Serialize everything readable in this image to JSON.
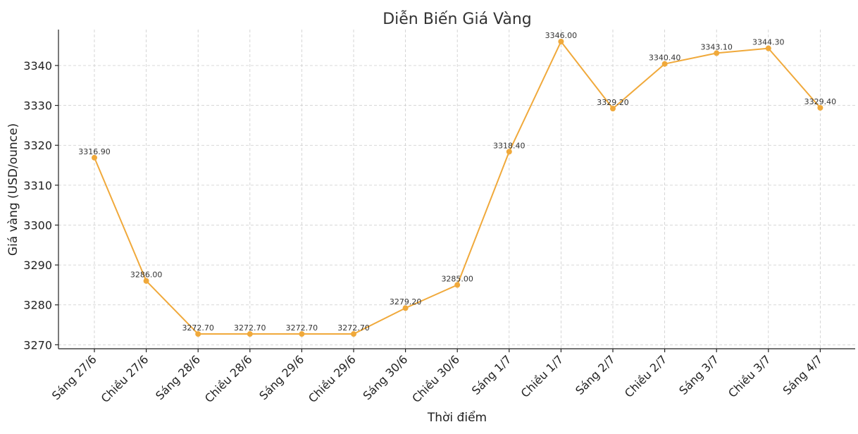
{
  "chart_data": {
    "type": "line",
    "title": "Diễn Biến Giá Vàng",
    "xlabel": "Thời điểm",
    "ylabel": "Giá vàng (USD/ounce)",
    "categories": [
      "Sáng 27/6",
      "Chiều 27/6",
      "Sáng 28/6",
      "Chiều 28/6",
      "Sáng 29/6",
      "Chiều 29/6",
      "Sáng 30/6",
      "Chiều 30/6",
      "Sáng 1/7",
      "Chiều 1/7",
      "Sáng 2/7",
      "Chiều 2/7",
      "Sáng 3/7",
      "Chiều 3/7",
      "Sáng 4/7"
    ],
    "series": [
      {
        "values": [
          3316.9,
          3286.0,
          3272.7,
          3272.7,
          3272.7,
          3272.7,
          3279.2,
          3285.0,
          3318.4,
          3346.0,
          3329.2,
          3340.4,
          3343.1,
          3344.3,
          3329.4
        ],
        "labels": [
          "3316.90",
          "3286.00",
          "3272.70",
          "3272.70",
          "3272.70",
          "3272.70",
          "3279.20",
          "3285.00",
          "3318.40",
          "3346.00",
          "3329.20",
          "3340.40",
          "3343.10",
          "3344.30",
          "3329.40"
        ]
      }
    ],
    "yticks": [
      "3270",
      "3280",
      "3290",
      "3300",
      "3310",
      "3320",
      "3330",
      "3340"
    ],
    "ylim": [
      3269,
      3349
    ],
    "grid": true,
    "colors": {
      "line": "#F0A93B",
      "marker": "#F0A93B"
    }
  }
}
